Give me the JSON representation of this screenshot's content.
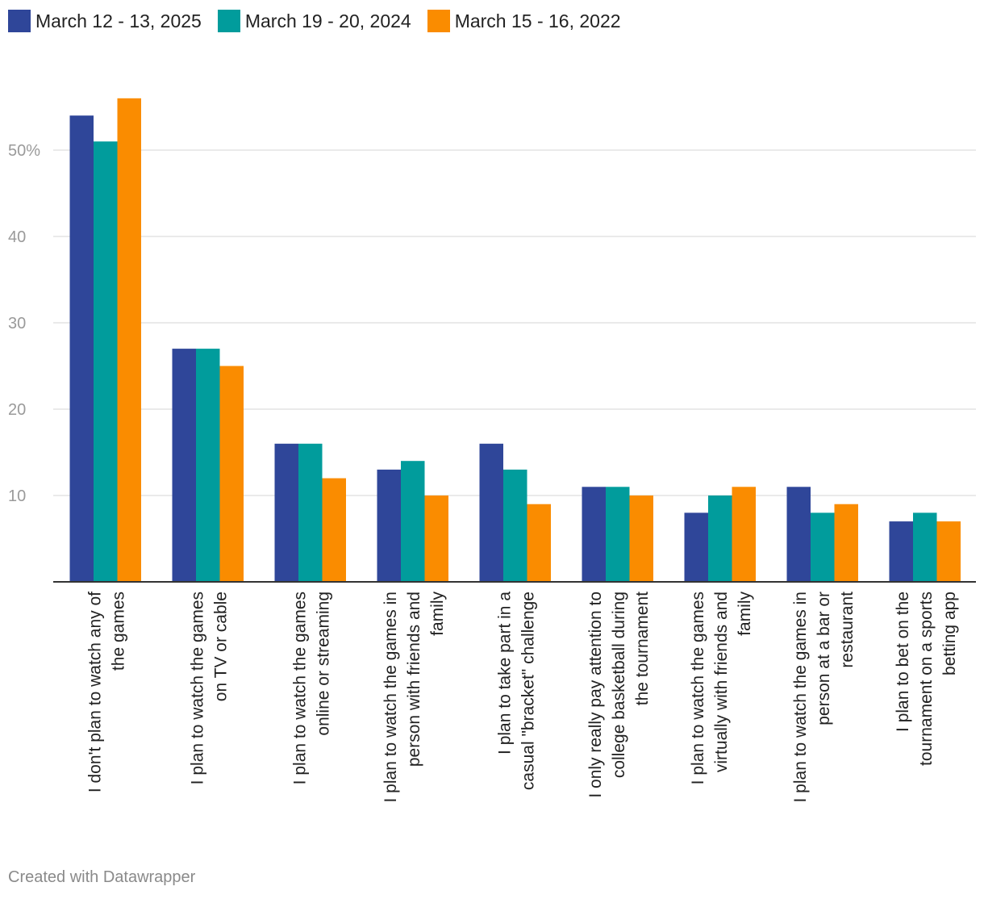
{
  "chart_data": {
    "type": "bar",
    "title": "",
    "xlabel": "",
    "ylabel": "",
    "ylim": [
      0,
      58
    ],
    "y_ticks": [
      {
        "value": 10,
        "label": "10"
      },
      {
        "value": 20,
        "label": "20"
      },
      {
        "value": 30,
        "label": "30"
      },
      {
        "value": 40,
        "label": "40"
      },
      {
        "value": 50,
        "label": "50%"
      }
    ],
    "grid": true,
    "legend_position": "top-left",
    "categories": [
      [
        "I don't plan to watch any of",
        "the games"
      ],
      [
        "I plan to watch the games",
        "on TV or cable"
      ],
      [
        "I plan to watch the games",
        "online or streaming"
      ],
      [
        "I plan to watch the games in",
        "person with friends and",
        "family"
      ],
      [
        "I plan to take part in a",
        "casual \"bracket\" challenge"
      ],
      [
        "I only really pay attention to",
        "college basketball during",
        "the tournament"
      ],
      [
        "I plan to watch the games",
        "virtually with friends and",
        "family"
      ],
      [
        "I plan to watch the games in",
        "person at a bar or",
        "restaurant"
      ],
      [
        "I plan to bet on the",
        "tournament on a sports",
        "betting app"
      ]
    ],
    "series": [
      {
        "name": "March 12 - 13, 2025",
        "color": "#2f4699",
        "values": [
          54,
          27,
          16,
          13,
          16,
          11,
          8,
          11,
          7
        ]
      },
      {
        "name": "March 19 - 20, 2024",
        "color": "#019c9c",
        "values": [
          51,
          27,
          16,
          14,
          13,
          11,
          10,
          8,
          8
        ]
      },
      {
        "name": "March 15 - 16, 2022",
        "color": "#fa8c00",
        "values": [
          56,
          25,
          12,
          10,
          9,
          10,
          11,
          9,
          7
        ]
      }
    ]
  },
  "footer": {
    "credit": "Created with Datawrapper"
  }
}
